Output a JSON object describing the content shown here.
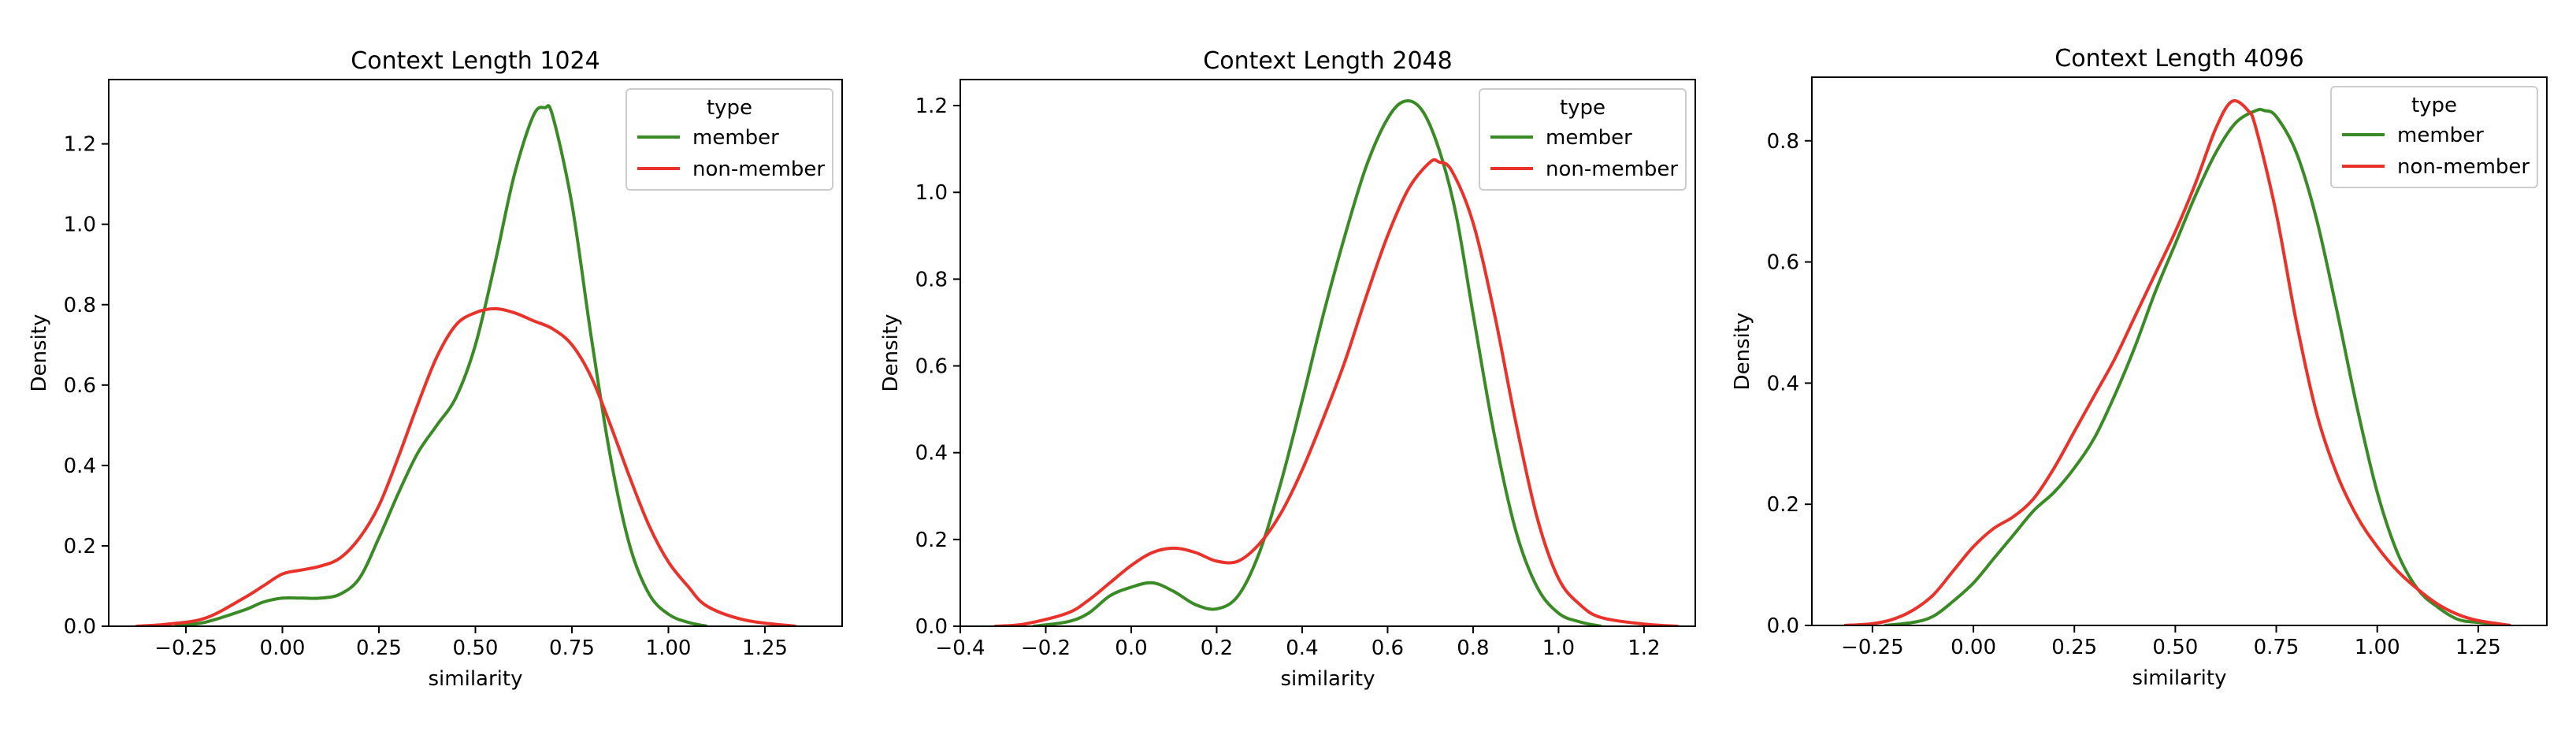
{
  "chart_data": [
    {
      "type": "line",
      "title": "Context Length 1024",
      "xlabel": "similarity",
      "ylabel": "Density",
      "xlim": [
        -0.45,
        1.45
      ],
      "ylim": [
        0,
        1.36
      ],
      "xticks": [
        -0.25,
        0.0,
        0.25,
        0.5,
        0.75,
        1.0,
        1.25
      ],
      "xticklabels": [
        "−0.25",
        "0.00",
        "0.25",
        "0.50",
        "0.75",
        "1.00",
        "1.25"
      ],
      "yticks": [
        0,
        0.2,
        0.4,
        0.6,
        0.8,
        1.0,
        1.2
      ],
      "yticklabels": [
        "0.0",
        "0.2",
        "0.4",
        "0.6",
        "0.8",
        "1.0",
        "1.2"
      ],
      "grid": false,
      "legend": {
        "title": "type",
        "placement": "top-right"
      },
      "series": [
        {
          "name": "member",
          "color": "#3a8a26",
          "x": [
            -0.28,
            -0.2,
            -0.1,
            -0.05,
            0.0,
            0.05,
            0.1,
            0.15,
            0.2,
            0.25,
            0.3,
            0.35,
            0.4,
            0.45,
            0.5,
            0.55,
            0.6,
            0.65,
            0.68,
            0.7,
            0.75,
            0.8,
            0.85,
            0.9,
            0.95,
            1.0,
            1.05,
            1.1
          ],
          "y": [
            0.0,
            0.01,
            0.04,
            0.06,
            0.07,
            0.07,
            0.07,
            0.08,
            0.12,
            0.22,
            0.33,
            0.43,
            0.5,
            0.57,
            0.7,
            0.9,
            1.12,
            1.27,
            1.29,
            1.27,
            1.05,
            0.72,
            0.42,
            0.2,
            0.08,
            0.03,
            0.01,
            0.0
          ]
        },
        {
          "name": "non-member",
          "color": "#e8322a",
          "x": [
            -0.38,
            -0.3,
            -0.2,
            -0.1,
            -0.05,
            0.0,
            0.05,
            0.1,
            0.15,
            0.2,
            0.25,
            0.3,
            0.35,
            0.4,
            0.45,
            0.5,
            0.55,
            0.6,
            0.65,
            0.7,
            0.75,
            0.8,
            0.85,
            0.9,
            0.95,
            1.0,
            1.05,
            1.1,
            1.2,
            1.33
          ],
          "y": [
            0.0,
            0.005,
            0.02,
            0.07,
            0.1,
            0.13,
            0.14,
            0.15,
            0.17,
            0.22,
            0.3,
            0.42,
            0.55,
            0.67,
            0.75,
            0.78,
            0.79,
            0.78,
            0.76,
            0.74,
            0.7,
            0.62,
            0.5,
            0.37,
            0.25,
            0.16,
            0.1,
            0.05,
            0.015,
            0.0
          ]
        }
      ]
    },
    {
      "type": "line",
      "title": "Context Length 2048",
      "xlabel": "similarity",
      "ylabel": "Density",
      "xlim": [
        -0.4,
        1.32
      ],
      "ylim": [
        0,
        1.26
      ],
      "xticks": [
        -0.4,
        -0.2,
        0.0,
        0.2,
        0.4,
        0.6,
        0.8,
        1.0,
        1.2
      ],
      "xticklabels": [
        "−0.4",
        "−0.2",
        "0.0",
        "0.2",
        "0.4",
        "0.6",
        "0.8",
        "1.0",
        "1.2"
      ],
      "yticks": [
        0,
        0.2,
        0.4,
        0.6,
        0.8,
        1.0,
        1.2
      ],
      "yticklabels": [
        "0.0",
        "0.2",
        "0.4",
        "0.6",
        "0.8",
        "1.0",
        "1.2"
      ],
      "grid": false,
      "legend": {
        "title": "type",
        "placement": "top-right"
      },
      "series": [
        {
          "name": "member",
          "color": "#3a8a26",
          "x": [
            -0.23,
            -0.15,
            -0.1,
            -0.05,
            0.0,
            0.05,
            0.1,
            0.15,
            0.2,
            0.25,
            0.3,
            0.35,
            0.4,
            0.45,
            0.5,
            0.55,
            0.6,
            0.64,
            0.68,
            0.72,
            0.76,
            0.8,
            0.85,
            0.9,
            0.95,
            1.0,
            1.05,
            1.1
          ],
          "y": [
            0.0,
            0.01,
            0.03,
            0.07,
            0.09,
            0.1,
            0.08,
            0.05,
            0.04,
            0.07,
            0.17,
            0.33,
            0.52,
            0.72,
            0.9,
            1.06,
            1.17,
            1.21,
            1.19,
            1.1,
            0.95,
            0.72,
            0.44,
            0.22,
            0.09,
            0.03,
            0.01,
            0.0
          ]
        },
        {
          "name": "non-member",
          "color": "#e8322a",
          "x": [
            -0.32,
            -0.25,
            -0.15,
            -0.1,
            -0.05,
            0.0,
            0.05,
            0.1,
            0.15,
            0.2,
            0.25,
            0.3,
            0.35,
            0.4,
            0.45,
            0.5,
            0.55,
            0.6,
            0.65,
            0.7,
            0.72,
            0.75,
            0.8,
            0.85,
            0.9,
            0.95,
            1.0,
            1.05,
            1.1,
            1.2,
            1.28
          ],
          "y": [
            0.0,
            0.005,
            0.03,
            0.06,
            0.1,
            0.14,
            0.17,
            0.18,
            0.17,
            0.15,
            0.15,
            0.19,
            0.26,
            0.36,
            0.48,
            0.61,
            0.76,
            0.9,
            1.01,
            1.07,
            1.07,
            1.05,
            0.93,
            0.72,
            0.47,
            0.25,
            0.11,
            0.05,
            0.02,
            0.005,
            0.0
          ]
        }
      ]
    },
    {
      "type": "line",
      "title": "Context Length 4096",
      "xlabel": "similarity",
      "ylabel": "Density",
      "xlim": [
        -0.4,
        1.42
      ],
      "ylim": [
        0,
        0.905
      ],
      "xticks": [
        -0.25,
        0.0,
        0.25,
        0.5,
        0.75,
        1.0,
        1.25
      ],
      "xticklabels": [
        "−0.25",
        "0.00",
        "0.25",
        "0.50",
        "0.75",
        "1.00",
        "1.25"
      ],
      "yticks": [
        0,
        0.2,
        0.4,
        0.6,
        0.8
      ],
      "yticklabels": [
        "0.0",
        "0.2",
        "0.4",
        "0.6",
        "0.8"
      ],
      "grid": false,
      "legend": {
        "title": "type",
        "placement": "top-right"
      },
      "series": [
        {
          "name": "member",
          "color": "#3a8a26",
          "x": [
            -0.22,
            -0.15,
            -0.1,
            -0.05,
            0.0,
            0.05,
            0.1,
            0.15,
            0.2,
            0.25,
            0.3,
            0.35,
            0.4,
            0.45,
            0.5,
            0.55,
            0.6,
            0.65,
            0.7,
            0.72,
            0.75,
            0.8,
            0.85,
            0.9,
            0.95,
            1.0,
            1.05,
            1.1,
            1.15,
            1.2,
            1.25,
            1.33
          ],
          "y": [
            0.0,
            0.005,
            0.015,
            0.04,
            0.07,
            0.11,
            0.15,
            0.19,
            0.22,
            0.26,
            0.31,
            0.38,
            0.46,
            0.55,
            0.63,
            0.71,
            0.78,
            0.83,
            0.85,
            0.85,
            0.84,
            0.78,
            0.67,
            0.52,
            0.36,
            0.22,
            0.12,
            0.06,
            0.03,
            0.01,
            0.005,
            0.0
          ]
        },
        {
          "name": "non-member",
          "color": "#e8322a",
          "x": [
            -0.32,
            -0.25,
            -0.2,
            -0.15,
            -0.1,
            -0.05,
            0.0,
            0.05,
            0.1,
            0.15,
            0.2,
            0.25,
            0.3,
            0.35,
            0.4,
            0.45,
            0.5,
            0.55,
            0.6,
            0.64,
            0.68,
            0.7,
            0.75,
            0.8,
            0.85,
            0.9,
            0.95,
            1.0,
            1.05,
            1.1,
            1.15,
            1.2,
            1.25,
            1.33
          ],
          "y": [
            0.0,
            0.003,
            0.01,
            0.025,
            0.05,
            0.09,
            0.13,
            0.16,
            0.18,
            0.21,
            0.26,
            0.32,
            0.38,
            0.44,
            0.51,
            0.58,
            0.65,
            0.73,
            0.82,
            0.865,
            0.85,
            0.82,
            0.68,
            0.5,
            0.35,
            0.25,
            0.18,
            0.13,
            0.09,
            0.06,
            0.035,
            0.018,
            0.008,
            0.0
          ]
        }
      ]
    }
  ]
}
